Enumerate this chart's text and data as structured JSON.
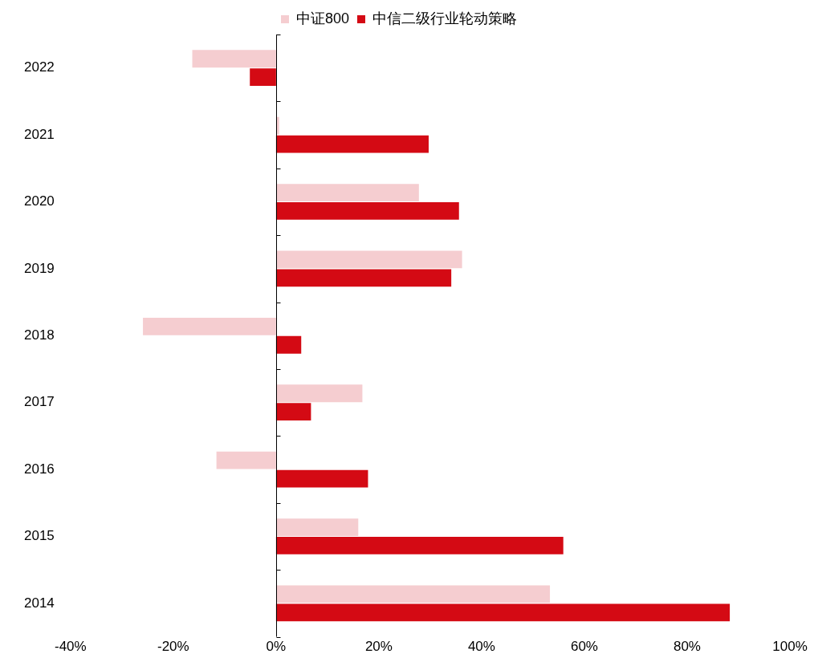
{
  "chart_data": {
    "type": "bar",
    "orientation": "horizontal",
    "categories": [
      "2022",
      "2021",
      "2020",
      "2019",
      "2018",
      "2017",
      "2016",
      "2015",
      "2014"
    ],
    "series": [
      {
        "name": "中证800",
        "color": "#f5cdd0",
        "values": [
          -16.3,
          0.6,
          27.8,
          36.2,
          -25.9,
          16.8,
          -11.6,
          16.0,
          53.3
        ]
      },
      {
        "name": "中信二级行业轮动策略",
        "color": "#d40a14",
        "values": [
          -5.1,
          29.7,
          35.6,
          34.1,
          4.9,
          6.8,
          17.9,
          55.9,
          88.3
        ]
      }
    ],
    "xlim": [
      -40,
      100
    ],
    "xticks": [
      {
        "value": -40,
        "label": "-40%"
      },
      {
        "value": -20,
        "label": "-20%"
      },
      {
        "value": 0,
        "label": "0%"
      },
      {
        "value": 20,
        "label": "20%"
      },
      {
        "value": 40,
        "label": "40%"
      },
      {
        "value": 60,
        "label": "60%"
      },
      {
        "value": 80,
        "label": "80%"
      },
      {
        "value": 100,
        "label": "100%"
      }
    ],
    "legend": "top"
  }
}
